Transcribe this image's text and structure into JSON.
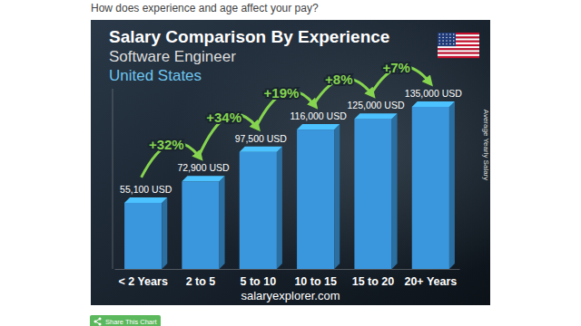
{
  "page": {
    "heading": "How does experience and age affect your pay?",
    "button": "Share This Chart"
  },
  "chart_data": {
    "type": "bar",
    "title": "Salary Comparison By Experience",
    "subtitle": "Software Engineer",
    "annotations": {
      "location": "United States",
      "changes": [
        "+32%",
        "+34%",
        "+19%",
        "+8%",
        "+7%"
      ],
      "source": "salaryexplorer.com"
    },
    "y_label": "Average Yearly Salary",
    "categories": [
      "< 2 Years",
      "2 to 5",
      "5 to 10",
      "10 to 15",
      "15 to 20",
      "20+ Years"
    ],
    "values": [
      55100,
      72900,
      97500,
      116000,
      125000,
      135000
    ],
    "value_labels": [
      "55,100 USD",
      "72,900 USD",
      "97,500 USD",
      "116,000 USD",
      "125,000 USD",
      "135,000 USD"
    ],
    "data_labels": true,
    "color": "#3b97dd",
    "ylim": [
      0,
      150000
    ],
    "tick_labels": "x"
  }
}
